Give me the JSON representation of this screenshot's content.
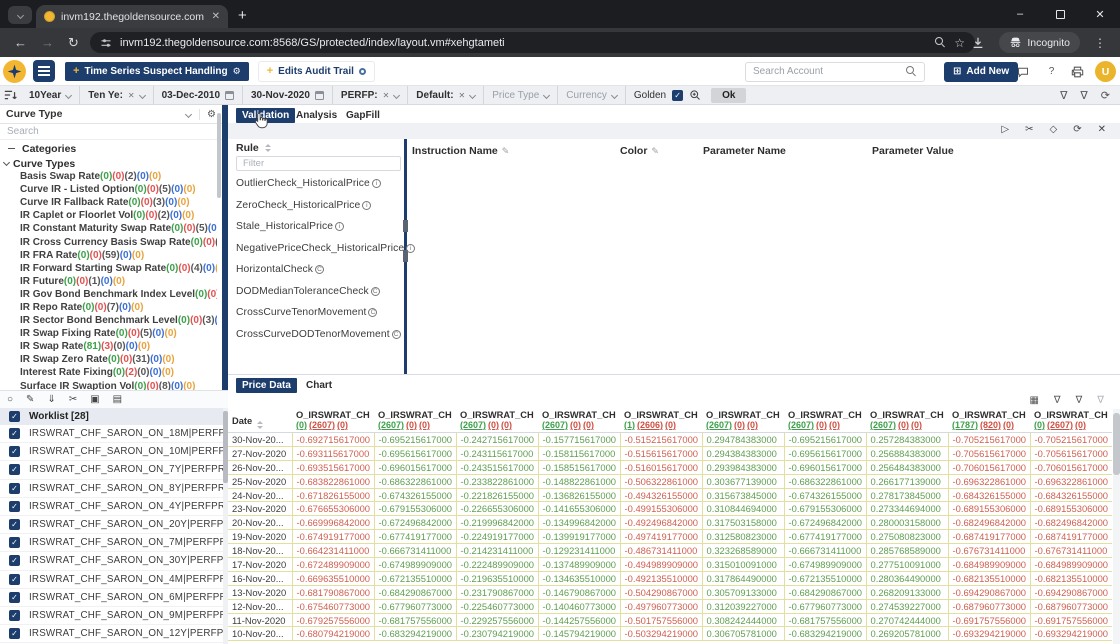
{
  "glyphs": {
    "check": "✓",
    "x": "✕",
    "plus": "+",
    "plus_boxed": "⊞",
    "gear": "⚙",
    "minus": "–",
    "back": "←",
    "forward": "→",
    "reload": "↻",
    "star": "☆",
    "kebab": "⋮",
    "question": "?"
  },
  "browser": {
    "tab_title": "invm192.thegoldensource.com",
    "url": "invm192.thegoldensource.com:8568/GS/protected/index/layout.vm#xehgtameti",
    "incognito_label": "Incognito"
  },
  "app_header": {
    "nav_tabs": [
      {
        "label": "Time Series Suspect Handling"
      },
      {
        "label": "Edits Audit Trail"
      }
    ],
    "search_placeholder": "Search Account",
    "add_new_label": "Add New",
    "avatar_text": "U"
  },
  "filter_bar": {
    "segments": [
      {
        "label": "10Year",
        "chevron": true
      },
      {
        "label": "Ten Ye:",
        "clear": true,
        "chevron": true
      },
      {
        "label": "03-Dec-2010",
        "calendar": true
      },
      {
        "label": "30-Nov-2020",
        "calendar": true
      },
      {
        "label": "PERFP:",
        "clear": true,
        "chevron": true
      },
      {
        "label": "Default:",
        "clear": true,
        "chevron": true
      },
      {
        "label": "Price Type",
        "muted": true,
        "chevron": true
      },
      {
        "label": "Currency",
        "muted": true,
        "chevron": true
      }
    ],
    "golden_label": "Golden",
    "ok_label": "Ok",
    "right_actions": [
      {
        "name": "filter-remove",
        "glyph": "∇"
      },
      {
        "name": "filter-apply",
        "glyph": "∇"
      },
      {
        "name": "reset",
        "glyph": "⟳"
      }
    ]
  },
  "sidebar": {
    "curve_type_label": "Curve Type",
    "search_placeholder": "Search",
    "categories_label": "Categories",
    "group_label": "Curve Types",
    "items": [
      {
        "label": "Basis Swap Rate",
        "counts": [
          "0",
          "0",
          "2",
          "0",
          "0"
        ]
      },
      {
        "label": "Curve IR - Listed Option",
        "counts": [
          "0",
          "0",
          "5",
          "0",
          "0"
        ]
      },
      {
        "label": "Curve IR Fallback Rate",
        "counts": [
          "0",
          "0",
          "3",
          "0",
          "0"
        ]
      },
      {
        "label": "IR Caplet or Floorlet Vol",
        "counts": [
          "0",
          "0",
          "2",
          "0",
          "0"
        ]
      },
      {
        "label": "IR Constant Maturity Swap Rate",
        "counts": [
          "0",
          "0",
          "5",
          "0",
          "0"
        ]
      },
      {
        "label": "IR Cross Currency Basis Swap Rate",
        "counts": [
          "0",
          "0",
          "1",
          "0",
          "0"
        ]
      },
      {
        "label": "IR FRA Rate",
        "counts": [
          "0",
          "0",
          "59",
          "0",
          "0"
        ]
      },
      {
        "label": "IR Forward Starting Swap Rate",
        "counts": [
          "0",
          "0",
          "4",
          "0",
          "0"
        ]
      },
      {
        "label": "IR Future",
        "counts": [
          "0",
          "0",
          "1",
          "0",
          "0"
        ]
      },
      {
        "label": "IR Gov Bond Benchmark Index Level",
        "counts": [
          "0",
          "0",
          "6",
          "0",
          "0"
        ]
      },
      {
        "label": "IR Repo Rate",
        "counts": [
          "0",
          "0",
          "7",
          "0",
          "0"
        ]
      },
      {
        "label": "IR Sector Bond Benchmark Level",
        "counts": [
          "0",
          "0",
          "3",
          "0",
          "0"
        ]
      },
      {
        "label": "IR Swap Fixing Rate",
        "counts": [
          "0",
          "0",
          "5",
          "0",
          "0"
        ]
      },
      {
        "label": "IR Swap Rate",
        "counts": [
          "81",
          "3",
          "0",
          "0",
          "0"
        ]
      },
      {
        "label": "IR Swap Zero Rate",
        "counts": [
          "0",
          "0",
          "31",
          "0",
          "0"
        ]
      },
      {
        "label": "Interest Rate Fixing",
        "counts": [
          "0",
          "2",
          "0",
          "0",
          "0"
        ]
      },
      {
        "label": "Surface IR Swaption Vol",
        "counts": [
          "0",
          "0",
          "8",
          "0",
          "0"
        ]
      }
    ]
  },
  "worklist": {
    "header": "Worklist [28]",
    "actions": [
      {
        "name": "refresh",
        "glyph": "○"
      },
      {
        "name": "edit",
        "glyph": "✎"
      },
      {
        "name": "download",
        "glyph": "⇓"
      },
      {
        "name": "cut",
        "glyph": "✂"
      },
      {
        "name": "archive",
        "glyph": "▣"
      },
      {
        "name": "export",
        "glyph": "▤"
      }
    ],
    "items": [
      "IRSWRAT_CHF_SARON_ON_18M|PERFPRCPT01|M...",
      "IRSWRAT_CHF_SARON_ON_10M|PERFPRCPT01|...",
      "IRSWRAT_CHF_SARON_ON_7Y|PERFPRCPT01|MI...",
      "IRSWRAT_CHF_SARON_ON_8Y|PERFPRCPT01|MI...",
      "IRSWRAT_CHF_SARON_ON_4Y|PERFPRCPT01|MI...",
      "IRSWRAT_CHF_SARON_ON_20Y|PERFPRCPT01|...",
      "IRSWRAT_CHF_SARON_ON_7M|PERFPRCPT01|MI...",
      "IRSWRAT_CHF_SARON_ON_30Y|PERFPRCPT01|...",
      "IRSWRAT_CHF_SARON_ON_4M|PERFPRCPT01|MI...",
      "IRSWRAT_CHF_SARON_ON_6M|PERFPRCPT01|MI...",
      "IRSWRAT_CHF_SARON_ON_9M|PERFPRCPT01|MI...",
      "IRSWRAT_CHF_SARON_ON_12Y|PERFPRCPT01|M..."
    ]
  },
  "main_panel": {
    "tabs": [
      "Validation",
      "Analysis",
      "GapFill"
    ],
    "active_tab": "Validation",
    "actions": [
      {
        "name": "run",
        "glyph": "▷"
      },
      {
        "name": "cut",
        "glyph": "✂"
      },
      {
        "name": "eraser",
        "glyph": "◇"
      },
      {
        "name": "refresh",
        "glyph": "⟳"
      },
      {
        "name": "close",
        "glyph": "✕"
      }
    ],
    "rule_header": "Rule",
    "filter_placeholder": "Filter",
    "columns": [
      "Instruction Name",
      "Color",
      "Parameter Name",
      "Parameter Value"
    ],
    "rules": [
      {
        "name": "OutlierCheck_HistoricalPrice",
        "badge": "i"
      },
      {
        "name": "ZeroCheck_HistoricalPrice",
        "badge": "i"
      },
      {
        "name": "Stale_HistoricalPrice",
        "badge": "i"
      },
      {
        "name": "NegativePriceCheck_HistoricalPrice",
        "badge": "i"
      },
      {
        "name": "HorizontalCheck",
        "badge": "C"
      },
      {
        "name": "DODMedianToleranceCheck",
        "badge": "C"
      },
      {
        "name": "CrossCurveTenorMovement",
        "badge": "C"
      },
      {
        "name": "CrossCurveDODTenorMovement",
        "badge": "C"
      }
    ]
  },
  "price_panel": {
    "tabs": [
      "Price Data",
      "Chart"
    ],
    "active_tab": "Price Data",
    "actions": [
      {
        "name": "table",
        "glyph": "▦"
      },
      {
        "name": "filter",
        "glyph": "∇"
      },
      {
        "name": "filter-edit",
        "glyph": "∇"
      },
      {
        "name": "filter-clear",
        "glyph": "∇",
        "dim": true
      }
    ],
    "date_header": "Date",
    "column_name": "O_IRSWRAT_CHF...",
    "column_counts": [
      [
        "0",
        "2607",
        "0"
      ],
      [
        "2607",
        "0",
        "0"
      ],
      [
        "2607",
        "0",
        "0"
      ],
      [
        "2607",
        "0",
        "0"
      ],
      [
        "1",
        "2606",
        "0"
      ],
      [
        "2607",
        "0",
        "0"
      ],
      [
        "2607",
        "0",
        "0"
      ],
      [
        "2607",
        "0",
        "0"
      ],
      [
        "1787",
        "820",
        "0"
      ],
      [
        "0",
        "2607",
        "0"
      ]
    ],
    "column_value_colors": [
      "red",
      "green",
      "green",
      "green",
      "red",
      "green",
      "green",
      "green",
      "red",
      "red"
    ],
    "rows": [
      {
        "date": "30-Nov-20...",
        "values": [
          "-0.692715617000",
          "-0.695215617000",
          "-0.242715617000",
          "-0.157715617000",
          "-0.515215617000",
          "0.294784383000",
          "-0.695215617000",
          "0.257284383000",
          "-0.705215617000",
          "-0.705215617000"
        ]
      },
      {
        "date": "27-Nov-2020",
        "values": [
          "-0.693115617000",
          "-0.695615617000",
          "-0.243115617000",
          "-0.158115617000",
          "-0.515615617000",
          "0.294384383000",
          "-0.695615617000",
          "0.256884383000",
          "-0.705615617000",
          "-0.705615617000"
        ]
      },
      {
        "date": "26-Nov-20...",
        "values": [
          "-0.693515617000",
          "-0.696015617000",
          "-0.243515617000",
          "-0.158515617000",
          "-0.516015617000",
          "0.293984383000",
          "-0.696015617000",
          "0.256484383000",
          "-0.706015617000",
          "-0.706015617000"
        ]
      },
      {
        "date": "25-Nov-2020",
        "values": [
          "-0.683822861000",
          "-0.686322861000",
          "-0.233822861000",
          "-0.148822861000",
          "-0.506322861000",
          "0.303677139000",
          "-0.686322861000",
          "0.266177139000",
          "-0.696322861000",
          "-0.696322861000"
        ]
      },
      {
        "date": "24-Nov-20...",
        "values": [
          "-0.671826155000",
          "-0.674326155000",
          "-0.221826155000",
          "-0.136826155000",
          "-0.494326155000",
          "0.315673845000",
          "-0.674326155000",
          "0.278173845000",
          "-0.684326155000",
          "-0.684326155000"
        ]
      },
      {
        "date": "23-Nov-2020",
        "values": [
          "-0.676655306000",
          "-0.679155306000",
          "-0.226655306000",
          "-0.141655306000",
          "-0.499155306000",
          "0.310844694000",
          "-0.679155306000",
          "0.273344694000",
          "-0.689155306000",
          "-0.689155306000"
        ]
      },
      {
        "date": "20-Nov-20...",
        "values": [
          "-0.669996842000",
          "-0.672496842000",
          "-0.219996842000",
          "-0.134996842000",
          "-0.492496842000",
          "0.317503158000",
          "-0.672496842000",
          "0.280003158000",
          "-0.682496842000",
          "-0.682496842000"
        ]
      },
      {
        "date": "19-Nov-2020",
        "values": [
          "-0.674919177000",
          "-0.677419177000",
          "-0.224919177000",
          "-0.139919177000",
          "-0.497419177000",
          "0.312580823000",
          "-0.677419177000",
          "0.275080823000",
          "-0.687419177000",
          "-0.687419177000"
        ]
      },
      {
        "date": "18-Nov-20...",
        "values": [
          "-0.664231411000",
          "-0.666731411000",
          "-0.214231411000",
          "-0.129231411000",
          "-0.486731411000",
          "0.323268589000",
          "-0.666731411000",
          "0.285768589000",
          "-0.676731411000",
          "-0.676731411000"
        ]
      },
      {
        "date": "17-Nov-2020",
        "values": [
          "-0.672489909000",
          "-0.674989909000",
          "-0.222489909000",
          "-0.137489909000",
          "-0.494989909000",
          "0.315010091000",
          "-0.674989909000",
          "0.277510091000",
          "-0.684989909000",
          "-0.684989909000"
        ]
      },
      {
        "date": "16-Nov-20...",
        "values": [
          "-0.669635510000",
          "-0.672135510000",
          "-0.219635510000",
          "-0.134635510000",
          "-0.492135510000",
          "0.317864490000",
          "-0.672135510000",
          "0.280364490000",
          "-0.682135510000",
          "-0.682135510000"
        ]
      },
      {
        "date": "13-Nov-2020",
        "values": [
          "-0.681790867000",
          "-0.684290867000",
          "-0.231790867000",
          "-0.146790867000",
          "-0.504290867000",
          "0.305709133000",
          "-0.684290867000",
          "0.268209133000",
          "-0.694290867000",
          "-0.694290867000"
        ]
      },
      {
        "date": "12-Nov-20...",
        "values": [
          "-0.675460773000",
          "-0.677960773000",
          "-0.225460773000",
          "-0.140460773000",
          "-0.497960773000",
          "0.312039227000",
          "-0.677960773000",
          "0.274539227000",
          "-0.687960773000",
          "-0.687960773000"
        ]
      },
      {
        "date": "11-Nov-2020",
        "values": [
          "-0.679257556000",
          "-0.681757556000",
          "-0.229257556000",
          "-0.144257556000",
          "-0.501757556000",
          "0.308242444000",
          "-0.681757556000",
          "0.270742444000",
          "-0.691757556000",
          "-0.691757556000"
        ]
      },
      {
        "date": "10-Nov-20...",
        "values": [
          "-0.680794219000",
          "-0.683294219000",
          "-0.230794219000",
          "-0.145794219000",
          "-0.503294219000",
          "0.306705781000",
          "-0.683294219000",
          "0.269205781000",
          "-0.693294219000",
          "-0.693294219000"
        ]
      }
    ]
  }
}
